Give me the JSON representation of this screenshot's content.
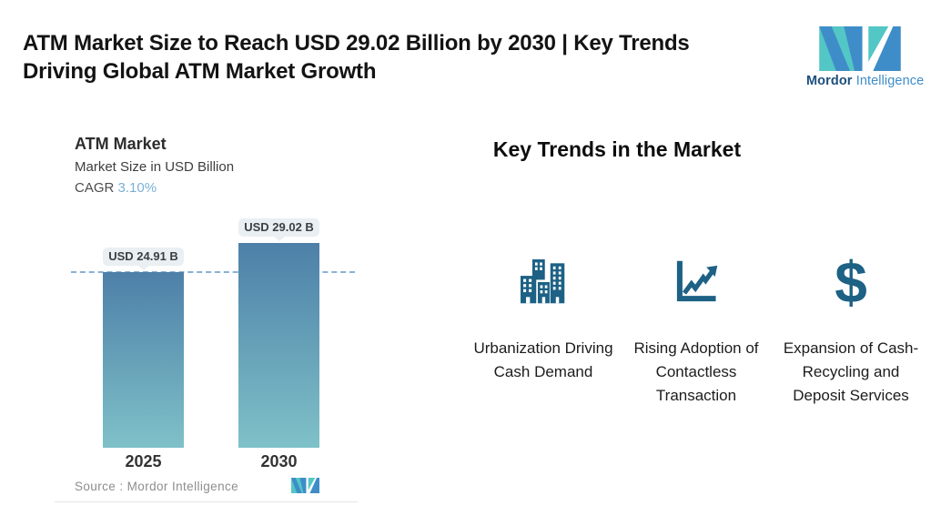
{
  "header": {
    "title_line1": "ATM Market Size to Reach USD 29.02 Billion by 2030 | Key Trends",
    "title_line2": "Driving Global ATM Market Growth"
  },
  "brand": {
    "word_bold": "Mordor",
    "word_light": "Intelligence"
  },
  "chart": {
    "title": "ATM Market",
    "subtitle": "Market Size in USD Billion",
    "cagr_label": "CAGR",
    "cagr_value": "3.10%",
    "source_label": "Source :",
    "source_value": "Mordor Intelligence"
  },
  "chart_data": {
    "type": "bar",
    "title": "ATM Market",
    "subtitle": "Market Size in USD Billion",
    "ylabel": "Market Size in USD Billion",
    "categories": [
      "2025",
      "2030"
    ],
    "values": [
      24.91,
      29.02
    ],
    "data_labels": [
      "USD 24.91 B",
      "USD 29.02 B"
    ],
    "cagr_percent": 3.1,
    "ylim": [
      0,
      30
    ],
    "grid": "off",
    "legend": "none",
    "reference_line": {
      "style": "dashed",
      "at_value": 24.91
    },
    "source": "Mordor Intelligence"
  },
  "trends": {
    "heading": "Key Trends in the Market",
    "items": [
      {
        "icon": "city-buildings-icon",
        "label": "Urbanization Driving Cash Demand"
      },
      {
        "icon": "rising-line-chart-icon",
        "label": "Rising Adoption of Contactless Transaction"
      },
      {
        "icon": "dollar-sign-icon",
        "label": "Expansion of Cash-Recycling and Deposit Services"
      }
    ]
  },
  "colors": {
    "icon_blue": "#1d6185",
    "bar_gradient_top": "#4d80a8",
    "bar_gradient_bottom": "#7fc1c8",
    "dashed_line": "#8ab1d6",
    "badge_bg": "#e9eff2",
    "cagr_value_blue": "#79b0d8",
    "brand_teal": "#53c6c6",
    "brand_blue": "#3e8dc8",
    "brand_dark_blue": "#1b4e7c"
  }
}
